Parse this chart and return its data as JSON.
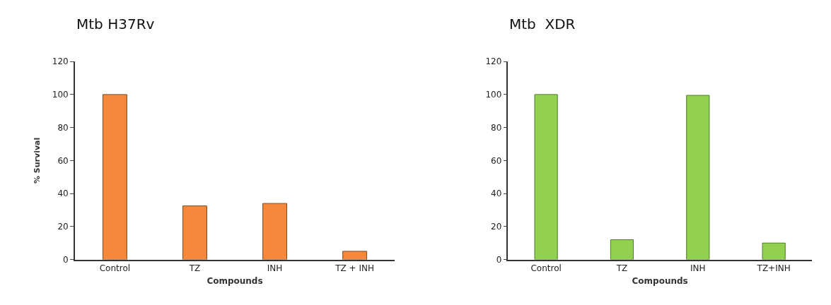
{
  "chart_data": [
    {
      "type": "bar",
      "title": "Mtb H37Rv",
      "xlabel": "Compounds",
      "ylabel": "% Survival",
      "categories": [
        "Control",
        "TZ",
        "INH",
        "TZ + INH"
      ],
      "values": [
        100,
        32.5,
        34,
        5
      ],
      "color": "#f5883a",
      "ylim": [
        0,
        120
      ],
      "yticks": [
        0,
        20,
        40,
        60,
        80,
        100,
        120
      ]
    },
    {
      "type": "bar",
      "title": "Mtb  XDR",
      "xlabel": "Compounds",
      "categories": [
        "Control",
        "TZ",
        "INH",
        "TZ+INH"
      ],
      "values": [
        100,
        12,
        99.5,
        10
      ],
      "color": "#92d050",
      "ylim": [
        0,
        120
      ],
      "yticks": [
        0,
        20,
        40,
        60,
        80,
        100,
        120
      ]
    }
  ]
}
